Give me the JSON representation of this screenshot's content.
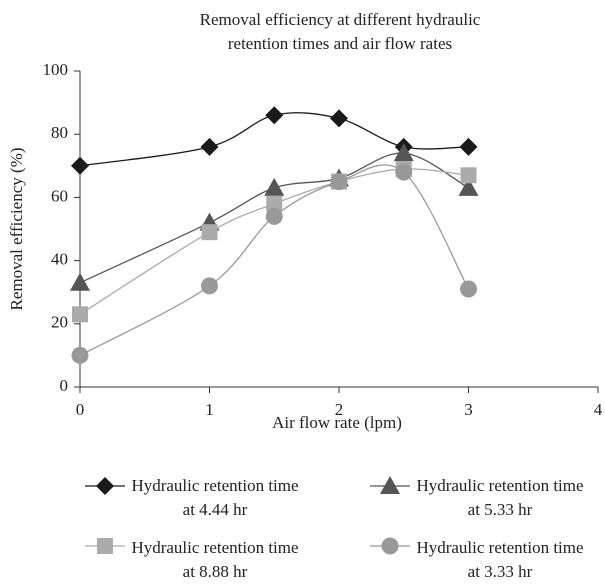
{
  "chart_data": {
    "type": "line",
    "title": "Removal efficiency at different hydraulic retention times and air flow rates",
    "xlabel": "Air flow rate (lpm)",
    "ylabel": "Removal efficiency (%)",
    "x": [
      0,
      1,
      1.5,
      2,
      2.5,
      3
    ],
    "series": [
      {
        "name": "Hydraulic retention time at 4.44 hr",
        "color": "#1a1a1a",
        "marker": "diamond",
        "values": [
          70,
          76,
          86,
          85,
          76,
          76
        ]
      },
      {
        "name": "Hydraulic retention time at 5.33 hr",
        "color": "#555555",
        "marker": "triangle",
        "values": [
          33,
          52,
          63,
          66,
          74,
          63
        ]
      },
      {
        "name": "Hydraulic retention time at 8.88 hr",
        "color": "#ababab",
        "marker": "square",
        "values": [
          23,
          49,
          58,
          65,
          69,
          67
        ]
      },
      {
        "name": "Hydraulic retention time at 3.33 hr",
        "color": "#999999",
        "marker": "circle",
        "values": [
          10,
          32,
          54,
          65,
          68,
          31
        ]
      }
    ],
    "xlim": [
      0,
      4
    ],
    "xticks": [
      0,
      1,
      2,
      3,
      4
    ],
    "ylim": [
      0,
      100
    ],
    "yticks": [
      0,
      20,
      40,
      60,
      80,
      100
    ],
    "smooth": true
  }
}
